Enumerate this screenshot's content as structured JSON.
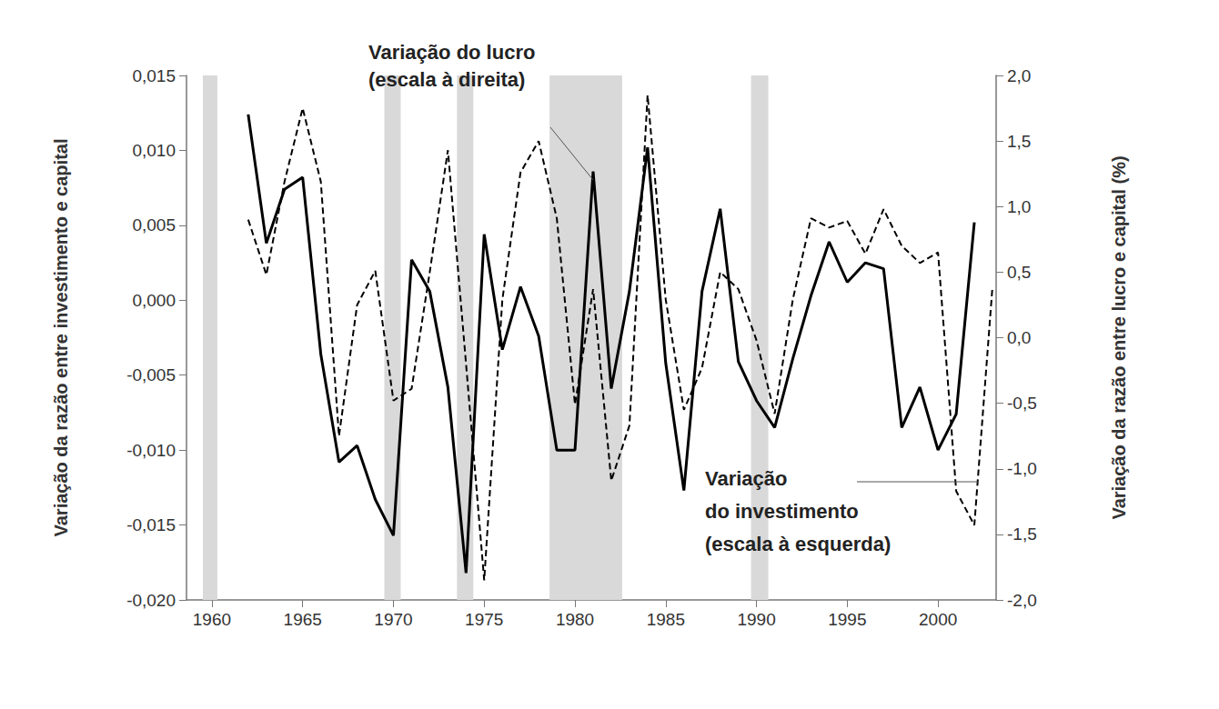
{
  "chart_data": {
    "type": "line",
    "y_label": "Variação da razão entre investimento e capital",
    "y2_label": "Variação da razão entre lucro e capital (%)",
    "annotations": [
      "Variação do lucro\n(escala à direita)",
      "Variação\ndo investimento\n(escala à esquerda)"
    ],
    "x": [
      1962,
      1963,
      1964,
      1965,
      1966,
      1967,
      1968,
      1969,
      1970,
      1971,
      1972,
      1973,
      1974,
      1975,
      1976,
      1977,
      1978,
      1979,
      1980,
      1981,
      1982,
      1983,
      1984,
      1985,
      1986,
      1987,
      1988,
      1989,
      1990,
      1991,
      1992,
      1993,
      1994,
      1995,
      1996,
      1997,
      1998,
      1999,
      2000,
      2001,
      2002,
      2003
    ],
    "series": [
      {
        "name": "Variação do investimento",
        "color": "#000000",
        "line_style": "solid",
        "values": [
          0.0124,
          0.0038,
          0.0074,
          0.0082,
          -0.0036,
          -0.0108,
          -0.0097,
          -0.0133,
          -0.0157,
          0.0027,
          0.0006,
          -0.0058,
          -0.0182,
          0.0044,
          -0.0033,
          0.0009,
          -0.0024,
          -0.01,
          -0.01,
          0.0086,
          -0.0059,
          0.0006,
          0.0102,
          -0.0042,
          -0.0127,
          0.0006,
          0.0061,
          -0.0041,
          -0.0067,
          -0.0085,
          -0.0039,
          0.0003,
          0.0039,
          0.0012,
          0.0025,
          0.0021,
          -0.0085,
          -0.0058,
          -0.01,
          -0.0076,
          0.0052,
          null
        ]
      },
      {
        "name": "Variação do lucro",
        "color": "#000000",
        "line_style": "dashed",
        "axis": "y2",
        "values": [
          0.9,
          0.48,
          1.19,
          1.75,
          1.19,
          -0.75,
          0.25,
          0.51,
          -0.48,
          -0.39,
          0.5,
          1.43,
          -0.2,
          -1.85,
          0.29,
          1.26,
          1.5,
          0.91,
          -0.51,
          0.37,
          -1.09,
          -0.67,
          1.85,
          0.29,
          -0.55,
          -0.23,
          0.5,
          0.37,
          -0.02,
          -0.58,
          0.29,
          0.91,
          0.84,
          0.89,
          0.64,
          0.98,
          0.7,
          0.57,
          0.65,
          -1.17,
          -1.43,
          0.39
        ]
      }
    ],
    "shaded_periods": [
      [
        1959.5,
        1960.3
      ],
      [
        1969.5,
        1970.4
      ],
      [
        1973.5,
        1974.4
      ],
      [
        1978.6,
        1982.6
      ],
      [
        1989.7,
        1990.65
      ]
    ],
    "xlim": [
      1958.6,
      2003.2
    ],
    "xticks": [
      1960,
      1965,
      1970,
      1975,
      1980,
      1985,
      1990,
      1995,
      2000
    ],
    "ylim": [
      -0.02,
      0.015
    ],
    "yticks": [
      {
        "value": -0.02,
        "label": "-0,020"
      },
      {
        "value": -0.015,
        "label": "-0,015"
      },
      {
        "value": -0.01,
        "label": "-0,010"
      },
      {
        "value": -0.005,
        "label": "-0,005"
      },
      {
        "value": 0,
        "label": "0,000"
      },
      {
        "value": 0.005,
        "label": "0,005"
      },
      {
        "value": 0.01,
        "label": "0,010"
      },
      {
        "value": 0.015,
        "label": "0,015"
      }
    ],
    "y2lim": [
      -2,
      2
    ],
    "y2ticks": [
      {
        "value": -2,
        "label": "-2,0"
      },
      {
        "value": -1.5,
        "label": "-1,5"
      },
      {
        "value": -1,
        "label": "-1,0"
      },
      {
        "value": -0.5,
        "label": "-0,5"
      },
      {
        "value": 0,
        "label": "0,0"
      },
      {
        "value": 0.5,
        "label": "0,5"
      },
      {
        "value": 1,
        "label": "1,0"
      },
      {
        "value": 1.5,
        "label": "1,5"
      },
      {
        "value": 2,
        "label": "2,0"
      }
    ],
    "grid": false
  }
}
